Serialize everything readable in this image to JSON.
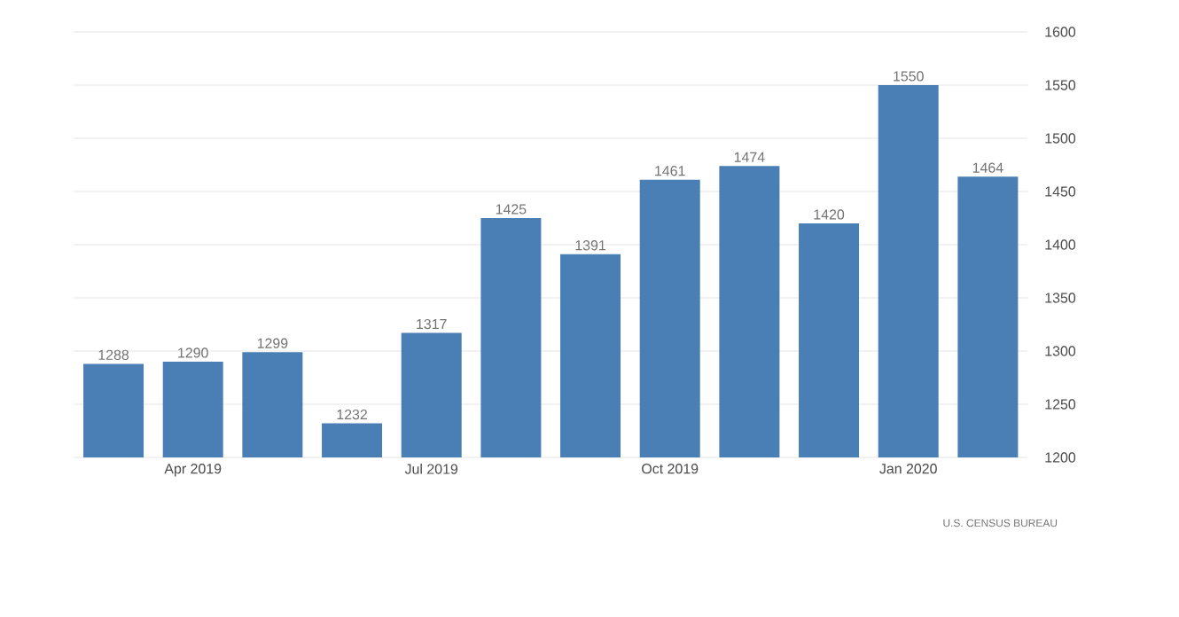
{
  "chart_data": {
    "type": "bar",
    "categories": [
      null,
      "Apr 2019",
      null,
      null,
      "Jul 2019",
      null,
      null,
      "Oct 2019",
      null,
      null,
      "Jan 2020",
      null
    ],
    "values": [
      1288,
      1290,
      1299,
      1232,
      1317,
      1425,
      1391,
      1461,
      1474,
      1420,
      1550,
      1464
    ],
    "color": "#4a7fb5",
    "ylim": [
      1200,
      1600
    ],
    "yticks": [
      1200,
      1250,
      1300,
      1350,
      1400,
      1450,
      1500,
      1550,
      1600
    ],
    "grid": "y",
    "data_labels": true,
    "annotations": [
      "U.S. CENSUS BUREAU"
    ]
  }
}
